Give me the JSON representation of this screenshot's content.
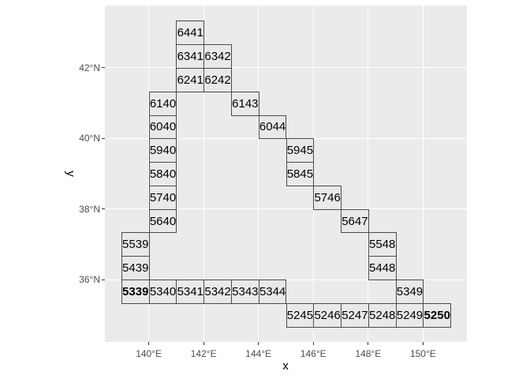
{
  "figure": {
    "background": "#FFFFFF"
  },
  "panel": {
    "background": "#EBEBEB",
    "grid_color": "#FFFFFF"
  },
  "chart_data": {
    "type": "heatmap",
    "subtype": "labeled lon/lat grid tiles (4-digit mesh codes)",
    "title": "",
    "xlabel": "x",
    "ylabel": "y",
    "xlim": [
      138.4,
      151.6
    ],
    "ylim": [
      34.2333,
      43.7667
    ],
    "grid": "major-only, white on gray panel",
    "legend": "none",
    "x_ticks": [
      {
        "value": 140,
        "label": "140°E"
      },
      {
        "value": 142,
        "label": "142°E"
      },
      {
        "value": 144,
        "label": "144°E"
      },
      {
        "value": 146,
        "label": "146°E"
      },
      {
        "value": 148,
        "label": "148°E"
      },
      {
        "value": 150,
        "label": "150°E"
      }
    ],
    "y_ticks": [
      {
        "value": 36,
        "label": "36°N"
      },
      {
        "value": 38,
        "label": "38°N"
      },
      {
        "value": 40,
        "label": "40°N"
      },
      {
        "value": 42,
        "label": "42°N"
      }
    ],
    "cell_width_deg": 1,
    "cell_height_deg": 0.66667,
    "cell_style": {
      "fill": "#E9E9E9",
      "border": "#4A4A4A",
      "text": "#000000"
    },
    "tick_style": {
      "mark_color": "#333333",
      "label_color": "#4D4D4D"
    },
    "cells": [
      {
        "code": "6441",
        "lon": 141,
        "lat": 42.66667
      },
      {
        "code": "6341",
        "lon": 141,
        "lat": 42.0
      },
      {
        "code": "6342",
        "lon": 142,
        "lat": 42.0
      },
      {
        "code": "6241",
        "lon": 141,
        "lat": 41.33333
      },
      {
        "code": "6242",
        "lon": 142,
        "lat": 41.33333
      },
      {
        "code": "6140",
        "lon": 140,
        "lat": 40.66667
      },
      {
        "code": "6143",
        "lon": 143,
        "lat": 40.66667
      },
      {
        "code": "6040",
        "lon": 140,
        "lat": 40.0
      },
      {
        "code": "6044",
        "lon": 144,
        "lat": 40.0
      },
      {
        "code": "5940",
        "lon": 140,
        "lat": 39.33333
      },
      {
        "code": "5945",
        "lon": 145,
        "lat": 39.33333
      },
      {
        "code": "5840",
        "lon": 140,
        "lat": 38.66667
      },
      {
        "code": "5845",
        "lon": 145,
        "lat": 38.66667
      },
      {
        "code": "5740",
        "lon": 140,
        "lat": 38.0
      },
      {
        "code": "5746",
        "lon": 146,
        "lat": 38.0
      },
      {
        "code": "5640",
        "lon": 140,
        "lat": 37.33333
      },
      {
        "code": "5647",
        "lon": 147,
        "lat": 37.33333
      },
      {
        "code": "5539",
        "lon": 139,
        "lat": 36.66667
      },
      {
        "code": "5548",
        "lon": 148,
        "lat": 36.66667
      },
      {
        "code": "5439",
        "lon": 139,
        "lat": 36.0
      },
      {
        "code": "5448",
        "lon": 148,
        "lat": 36.0
      },
      {
        "code": "5339",
        "lon": 139,
        "lat": 35.33333,
        "bold": true
      },
      {
        "code": "5340",
        "lon": 140,
        "lat": 35.33333
      },
      {
        "code": "5341",
        "lon": 141,
        "lat": 35.33333
      },
      {
        "code": "5342",
        "lon": 142,
        "lat": 35.33333
      },
      {
        "code": "5343",
        "lon": 143,
        "lat": 35.33333
      },
      {
        "code": "5344",
        "lon": 144,
        "lat": 35.33333
      },
      {
        "code": "5349",
        "lon": 149,
        "lat": 35.33333
      },
      {
        "code": "5245",
        "lon": 145,
        "lat": 34.66667
      },
      {
        "code": "5246",
        "lon": 146,
        "lat": 34.66667
      },
      {
        "code": "5247",
        "lon": 147,
        "lat": 34.66667
      },
      {
        "code": "5248",
        "lon": 148,
        "lat": 34.66667
      },
      {
        "code": "5249",
        "lon": 149,
        "lat": 34.66667
      },
      {
        "code": "5250",
        "lon": 150,
        "lat": 34.66667,
        "bold": true
      }
    ]
  }
}
